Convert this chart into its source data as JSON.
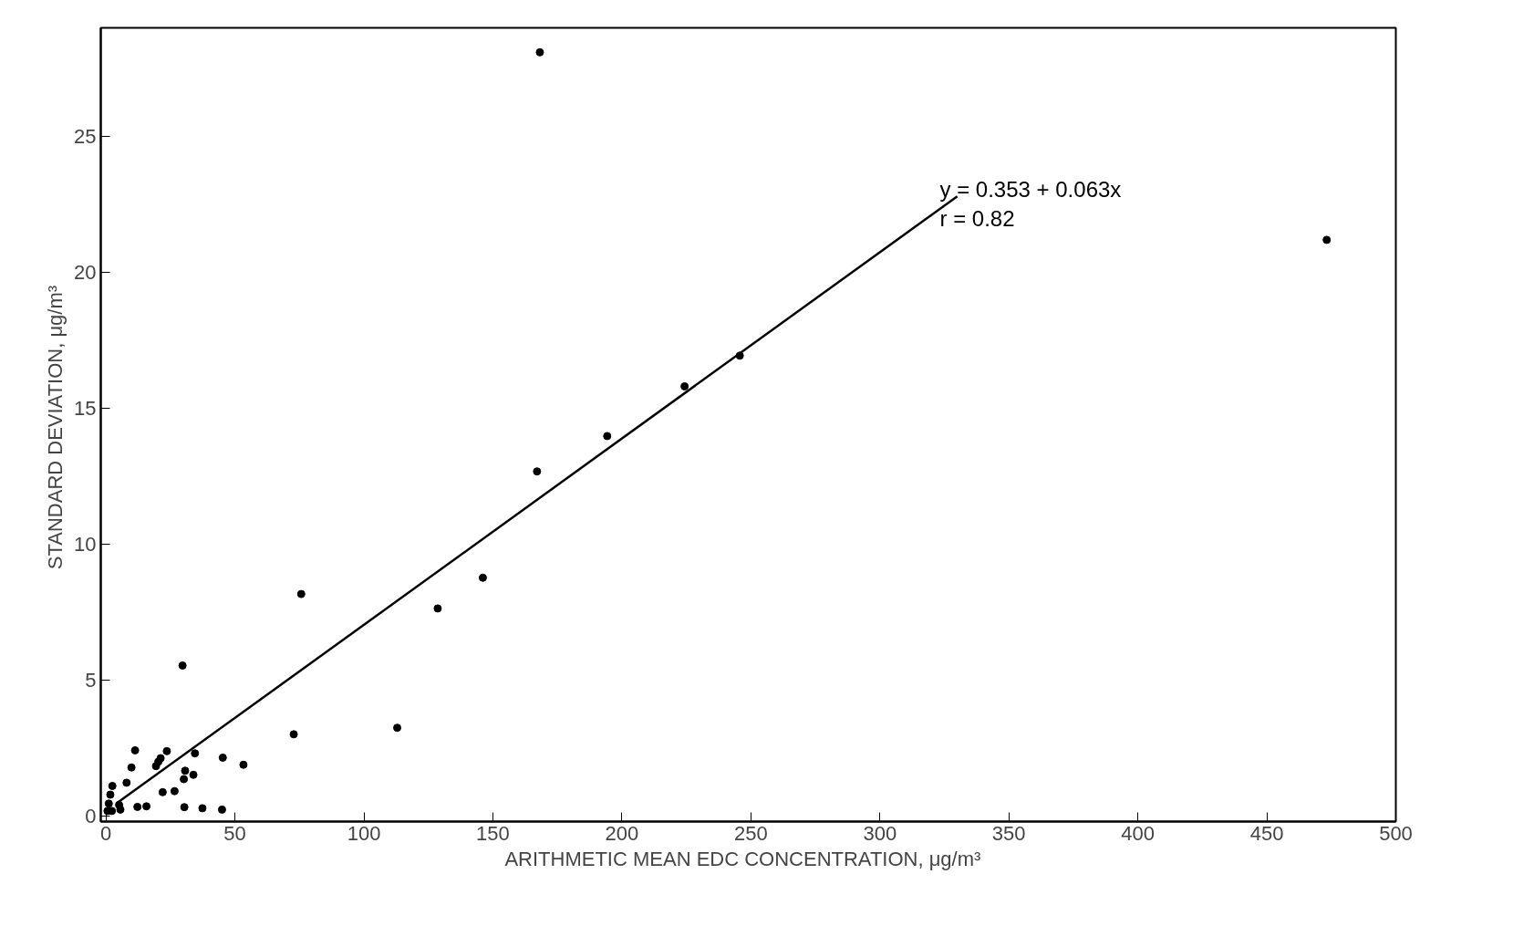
{
  "chart_data": {
    "type": "scatter",
    "xlabel": "ARITHMETIC MEAN  EDC  CONCENTRATION, μg/m³",
    "ylabel": "STANDARD  DEVIATION, μg/m³",
    "xlim": [
      -2,
      500
    ],
    "ylim": [
      -0.2,
      29
    ],
    "xticks": [
      0,
      50,
      100,
      150,
      200,
      250,
      300,
      350,
      400,
      450,
      500
    ],
    "yticks": [
      0,
      5,
      10,
      15,
      20,
      25
    ],
    "grid": false,
    "marker": "circle",
    "series": [
      {
        "color": "#000000",
        "x": [
          11.3,
          9.9,
          8.0,
          2.5,
          23.6,
          21.2,
          20.3,
          19.4,
          34.5,
          30.7,
          30.2,
          33.9,
          45.3,
          53.3,
          72.8,
          112.9,
          22.0,
          26.6,
          12.2,
          15.7,
          30.4,
          37.4,
          45.0,
          29.7,
          1.7,
          1.1,
          5.1,
          5.6,
          2.3,
          0.6,
          168.2,
          473.2,
          245.7,
          224.3,
          194.3,
          167.1,
          146.1,
          128.6,
          75.7
        ],
        "values": [
          2.42,
          1.79,
          1.23,
          1.11,
          2.39,
          2.13,
          2.0,
          1.84,
          2.31,
          1.67,
          1.36,
          1.52,
          2.15,
          1.89,
          3.01,
          3.25,
          0.88,
          0.92,
          0.34,
          0.36,
          0.33,
          0.29,
          0.24,
          5.54,
          0.79,
          0.46,
          0.41,
          0.24,
          0.19,
          0.19,
          28.1,
          21.2,
          16.94,
          15.81,
          13.98,
          12.68,
          8.77,
          7.64,
          8.17
        ]
      },
      {
        "type": "line",
        "color": "#000000",
        "line_style": "solid",
        "marker": "none",
        "x": [
          4,
          330
        ],
        "values": [
          0.46,
          22.8
        ]
      }
    ],
    "annotations": [
      "y = 0.353 + 0.063x",
      "r = 0.82"
    ]
  }
}
